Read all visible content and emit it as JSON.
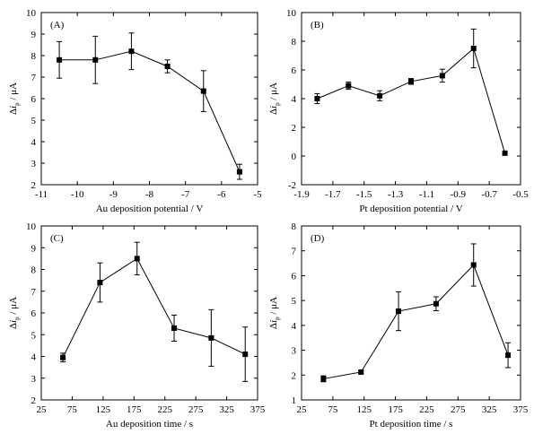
{
  "chart_data": [
    {
      "type": "line",
      "panel_label": "(A)",
      "xlabel": "Au deposition potential / V",
      "ylabel": "Δi_p / μA",
      "xlim": [
        -11,
        -5
      ],
      "ylim": [
        2,
        10
      ],
      "xticks": [
        -11,
        -10,
        -9,
        -8,
        -7,
        -6,
        -5
      ],
      "yticks": [
        2,
        3,
        4,
        5,
        6,
        7,
        8,
        9,
        10
      ],
      "x": [
        -10.5,
        -9.5,
        -8.5,
        -7.5,
        -6.5,
        -5.5
      ],
      "y": [
        7.8,
        7.8,
        8.2,
        7.5,
        6.35,
        2.6
      ],
      "yerr": [
        0.85,
        1.1,
        0.85,
        0.3,
        0.95,
        0.35
      ]
    },
    {
      "type": "line",
      "panel_label": "(B)",
      "xlabel": "Pt deposition potential / V",
      "ylabel": "Δi_p / μA",
      "xlim": [
        -1.9,
        -0.5
      ],
      "ylim": [
        -2,
        10
      ],
      "xticks": [
        -1.9,
        -1.7,
        -1.5,
        -1.3,
        -1.1,
        -0.9,
        -0.7,
        -0.5
      ],
      "yticks": [
        -2,
        0,
        2,
        4,
        6,
        8,
        10
      ],
      "x": [
        -1.8,
        -1.6,
        -1.4,
        -1.2,
        -1.0,
        -0.8,
        -0.6
      ],
      "y": [
        4.0,
        4.9,
        4.2,
        5.2,
        5.6,
        7.5,
        0.2
      ],
      "yerr": [
        0.35,
        0.25,
        0.35,
        0.2,
        0.45,
        1.35,
        0.0
      ]
    },
    {
      "type": "line",
      "panel_label": "(C)",
      "xlabel": "Au deposition time / s",
      "ylabel": "Δi_p / μA",
      "xlim": [
        25,
        375
      ],
      "ylim": [
        2,
        10
      ],
      "xticks": [
        25,
        75,
        125,
        175,
        225,
        275,
        325,
        375
      ],
      "yticks": [
        2,
        3,
        4,
        5,
        6,
        7,
        8,
        9,
        10
      ],
      "x": [
        60,
        120,
        180,
        240,
        300,
        355
      ],
      "y": [
        3.95,
        7.4,
        8.5,
        5.3,
        4.85,
        4.1
      ],
      "yerr": [
        0.2,
        0.9,
        0.75,
        0.6,
        1.3,
        1.25
      ]
    },
    {
      "type": "line",
      "panel_label": "(D)",
      "xlabel": "Pt deposition time / s",
      "ylabel": "Δi_p / μA",
      "xlim": [
        25,
        375
      ],
      "ylim": [
        1,
        8
      ],
      "xticks": [
        25,
        75,
        125,
        175,
        225,
        275,
        325,
        375
      ],
      "yticks": [
        1,
        2,
        3,
        4,
        5,
        6,
        7,
        8
      ],
      "x": [
        60,
        120,
        180,
        240,
        300,
        355
      ],
      "y": [
        1.85,
        2.12,
        4.57,
        4.87,
        6.43,
        2.8
      ],
      "yerr": [
        0.12,
        0.05,
        0.78,
        0.28,
        0.85,
        0.5
      ]
    }
  ]
}
